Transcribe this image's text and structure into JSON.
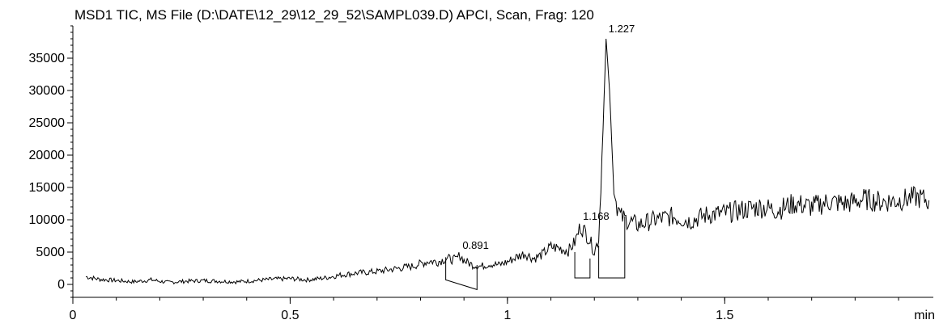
{
  "chart_data": {
    "type": "line",
    "title": "MSD1 TIC, MS File (D:\\DATE\\12_29\\12_29_52\\SAMPL039.D)  APCI, Scan, Frag: 120",
    "xlabel": "min",
    "ylabel": "",
    "xlim": [
      0,
      1.98
    ],
    "ylim": [
      -2000,
      40000
    ],
    "x_ticks": [
      0,
      0.5,
      1,
      1.5
    ],
    "x_tick_labels": [
      "0",
      "0.5",
      "1",
      "1.5"
    ],
    "y_ticks": [
      0,
      5000,
      10000,
      15000,
      20000,
      25000,
      30000,
      35000
    ],
    "y_tick_labels": [
      "0",
      "5000",
      "10000",
      "15000",
      "20000",
      "25000",
      "30000",
      "35000"
    ],
    "grid": false,
    "series": [
      {
        "x": [
          0.03,
          0.06,
          0.1,
          0.14,
          0.18,
          0.22,
          0.26,
          0.3,
          0.34,
          0.38,
          0.42,
          0.46,
          0.5,
          0.54,
          0.58,
          0.62,
          0.66,
          0.7,
          0.74,
          0.78,
          0.8,
          0.82,
          0.84,
          0.86,
          0.88,
          0.891,
          0.9,
          0.92,
          0.94,
          0.96,
          0.98,
          1.0,
          1.02,
          1.04,
          1.06,
          1.08,
          1.1,
          1.12,
          1.14,
          1.155,
          1.168,
          1.18,
          1.19,
          1.2,
          1.21,
          1.22,
          1.227,
          1.235,
          1.245,
          1.26,
          1.28,
          1.3,
          1.34,
          1.38,
          1.42,
          1.46,
          1.5,
          1.54,
          1.58,
          1.62,
          1.66,
          1.7,
          1.74,
          1.78,
          1.82,
          1.86,
          1.9,
          1.94,
          1.97
        ],
        "y": [
          1200,
          800,
          600,
          400,
          700,
          300,
          500,
          600,
          500,
          400,
          600,
          800,
          900,
          700,
          1000,
          1500,
          1800,
          2000,
          2400,
          2800,
          3200,
          3600,
          3500,
          4000,
          3800,
          4500,
          3700,
          3000,
          2800,
          3200,
          3000,
          3500,
          4200,
          4800,
          4000,
          4600,
          5800,
          5600,
          5200,
          6500,
          9000,
          8000,
          6800,
          5000,
          7200,
          24000,
          38000,
          30000,
          14000,
          10500,
          9800,
          9200,
          10000,
          10500,
          9800,
          10800,
          11000,
          11500,
          12000,
          11500,
          12500,
          12000,
          12800,
          12500,
          13200,
          12800,
          13000,
          13500,
          13000
        ]
      }
    ],
    "peak_labels": [
      {
        "x": 0.891,
        "y": 4500,
        "label": "0.891"
      },
      {
        "x": 1.168,
        "y": 9000,
        "label": "1.168"
      },
      {
        "x": 1.227,
        "y": 38000,
        "label": "1.227"
      }
    ]
  }
}
